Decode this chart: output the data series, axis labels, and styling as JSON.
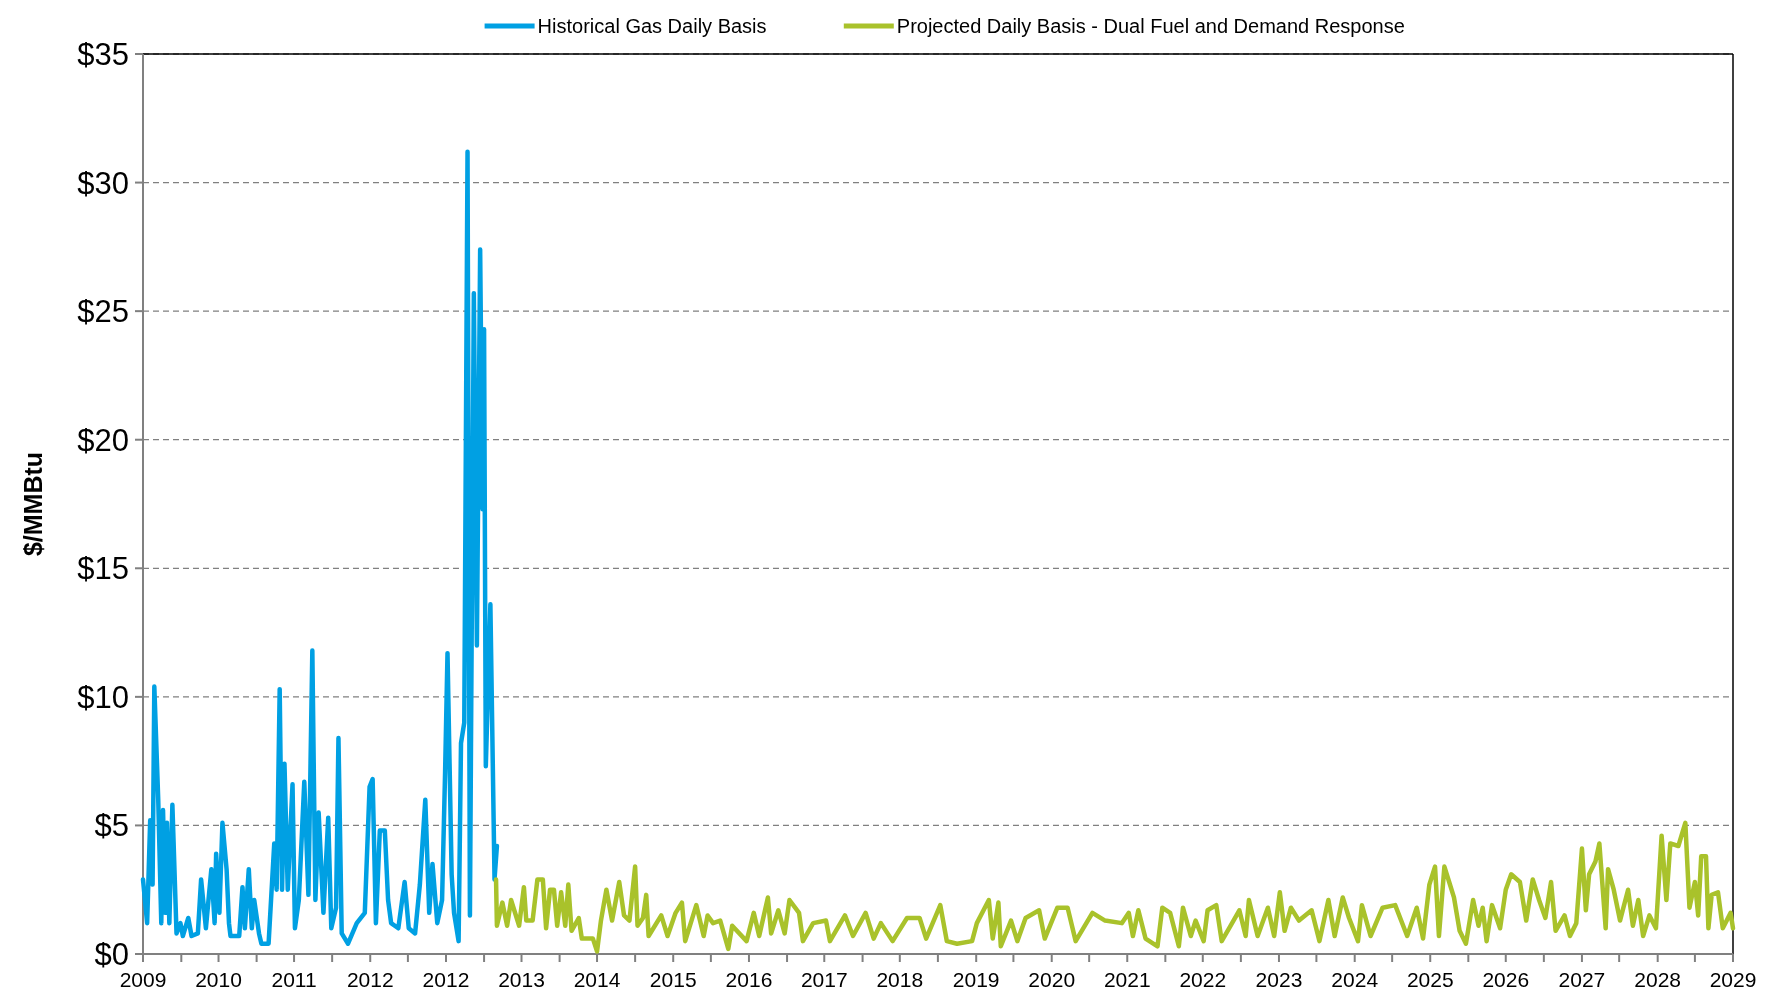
{
  "chart_data": {
    "type": "line",
    "ylabel": "$/MMBtu",
    "legend": "top",
    "grid": "y",
    "line_style": "solid",
    "marker": "none",
    "xlim": [
      "2009-02-28",
      "2029-02-28"
    ],
    "xticks": [
      {
        "value": "2009-02-28",
        "label": "2009"
      },
      {
        "value": "2009-08-23",
        "label": null
      },
      {
        "value": "2010-02-10",
        "label": "2010"
      },
      {
        "value": "2010-08-04",
        "label": null
      },
      {
        "value": "2011-01-23",
        "label": "2011"
      },
      {
        "value": "2011-07-17",
        "label": null
      },
      {
        "value": "2012-01-08",
        "label": "2012"
      },
      {
        "value": "2012-06-29",
        "label": null
      },
      {
        "value": "2012-12-21",
        "label": "2012"
      },
      {
        "value": "2013-06-14",
        "label": null
      },
      {
        "value": "2013-12-03",
        "label": "2013"
      },
      {
        "value": "2014-05-27",
        "label": null
      },
      {
        "value": "2014-11-15",
        "label": "2014"
      },
      {
        "value": "2015-05-09",
        "label": null
      },
      {
        "value": "2015-10-31",
        "label": "2015"
      },
      {
        "value": "2016-04-21",
        "label": null
      },
      {
        "value": "2016-10-13",
        "label": "2016"
      },
      {
        "value": "2017-04-06",
        "label": null
      },
      {
        "value": "2017-09-24",
        "label": "2017"
      },
      {
        "value": "2018-03-19",
        "label": null
      },
      {
        "value": "2018-09-06",
        "label": "2018"
      },
      {
        "value": "2019-02-28",
        "label": null
      },
      {
        "value": "2019-08-23",
        "label": "2019"
      },
      {
        "value": "2020-02-10",
        "label": null
      },
      {
        "value": "2020-08-04",
        "label": "2020"
      },
      {
        "value": "2021-01-23",
        "label": null
      },
      {
        "value": "2021-07-17",
        "label": "2021"
      },
      {
        "value": "2022-01-08",
        "label": null
      },
      {
        "value": "2022-06-29",
        "label": "2022"
      },
      {
        "value": "2022-12-21",
        "label": null
      },
      {
        "value": "2023-06-14",
        "label": "2023"
      },
      {
        "value": "2023-12-03",
        "label": null
      },
      {
        "value": "2024-05-27",
        "label": "2024"
      },
      {
        "value": "2024-11-15",
        "label": null
      },
      {
        "value": "2025-05-09",
        "label": "2025"
      },
      {
        "value": "2025-10-31",
        "label": null
      },
      {
        "value": "2026-04-21",
        "label": "2026"
      },
      {
        "value": "2026-10-13",
        "label": null
      },
      {
        "value": "2027-04-06",
        "label": "2027"
      },
      {
        "value": "2027-09-24",
        "label": null
      },
      {
        "value": "2028-03-19",
        "label": "2028"
      },
      {
        "value": "2028-09-06",
        "label": null
      },
      {
        "value": "2029-02-28",
        "label": "2029"
      }
    ],
    "ylim": [
      0,
      35
    ],
    "yticks": [
      {
        "value": 0,
        "label": "$0"
      },
      {
        "value": 5,
        "label": "$5"
      },
      {
        "value": 10,
        "label": "$10"
      },
      {
        "value": 15,
        "label": "$15"
      },
      {
        "value": 20,
        "label": "$20"
      },
      {
        "value": 25,
        "label": "$25"
      },
      {
        "value": 30,
        "label": "$30"
      },
      {
        "value": 35,
        "label": "$35"
      }
    ],
    "series": [
      {
        "name": "Historical Gas Daily Basis",
        "color": "#00a0e3",
        "x": [
          "2009-02-28",
          "2009-03-19",
          "2009-04-02",
          "2009-04-13",
          "2009-04-21",
          "2009-05-09",
          "2009-05-23",
          "2009-05-31",
          "2009-06-11",
          "2009-06-18",
          "2009-06-29",
          "2009-07-13",
          "2009-08-01",
          "2009-08-19",
          "2009-08-30",
          "2009-09-24",
          "2009-10-09",
          "2009-11-07",
          "2009-11-22",
          "2009-12-14",
          "2010-01-08",
          "2010-01-23",
          "2010-01-30",
          "2010-02-14",
          "2010-02-28",
          "2010-03-19",
          "2010-03-30",
          "2010-04-06",
          "2010-05-16",
          "2010-05-31",
          "2010-06-11",
          "2010-06-29",
          "2010-07-13",
          "2010-07-24",
          "2010-08-15",
          "2010-08-26",
          "2010-09-28",
          "2010-10-24",
          "2010-11-04",
          "2010-11-18",
          "2010-11-29",
          "2010-12-10",
          "2010-12-25",
          "2011-01-16",
          "2011-01-27",
          "2011-02-14",
          "2011-03-11",
          "2011-03-30",
          "2011-04-17",
          "2011-05-01",
          "2011-05-16",
          "2011-06-07",
          "2011-06-29",
          "2011-07-13",
          "2011-08-04",
          "2011-08-15",
          "2011-08-30",
          "2011-09-28",
          "2011-11-07",
          "2011-12-14",
          "2012-01-05",
          "2012-01-19",
          "2012-02-03",
          "2012-02-21",
          "2012-03-15",
          "2012-03-30",
          "2012-04-13",
          "2012-05-16",
          "2012-06-14",
          "2012-07-03",
          "2012-08-01",
          "2012-08-23",
          "2012-09-17",
          "2012-10-05",
          "2012-10-20",
          "2012-11-11",
          "2012-12-03",
          "2012-12-17",
          "2012-12-28",
          "2013-01-16",
          "2013-01-27",
          "2013-02-17",
          "2013-02-28",
          "2013-03-15",
          "2013-03-30",
          "2013-04-10",
          "2013-04-28",
          "2013-05-12",
          "2013-05-27",
          "2013-06-07",
          "2013-06-14",
          "2013-06-22",
          "2013-07-13",
          "2013-08-01",
          "2013-08-12"
        ],
        "values": [
          2.9,
          1.2,
          5.2,
          2.7,
          10.4,
          6,
          1.2,
          5.6,
          1.6,
          5.1,
          1.2,
          5.8,
          0.8,
          1.2,
          0.7,
          1.4,
          0.7,
          0.8,
          2.9,
          1,
          3.3,
          1.2,
          3.9,
          1.6,
          5.1,
          3.3,
          1.2,
          0.7,
          0.7,
          2.6,
          1,
          3.3,
          1,
          2.1,
          0.8,
          0.4,
          0.4,
          4.3,
          2.5,
          10.3,
          2.5,
          7.4,
          2.5,
          6.6,
          1,
          2.1,
          6.7,
          2.3,
          11.8,
          2.1,
          5.5,
          1.6,
          5.3,
          1,
          1.8,
          8.4,
          0.8,
          0.4,
          1.2,
          1.6,
          6.5,
          6.8,
          1.2,
          4.8,
          4.8,
          2.1,
          1.2,
          1,
          2.8,
          1,
          0.8,
          2.7,
          6,
          1.6,
          3.5,
          1.2,
          2.1,
          7.1,
          11.7,
          3.1,
          1.6,
          0.5,
          8.2,
          9,
          31.2,
          1.5,
          25.7,
          12,
          27.4,
          17.3,
          24.3,
          7.3,
          13.6,
          2.9,
          4.2
        ]
      },
      {
        "name": "Projected Daily Basis - Dual Fuel and Demand Response",
        "color": "#a9c22b",
        "x": [
          "2013-08-08",
          "2013-08-12",
          "2013-09-06",
          "2013-09-28",
          "2013-10-16",
          "2013-11-22",
          "2013-12-14",
          "2013-12-25",
          "2014-01-23",
          "2014-02-14",
          "2014-03-11",
          "2014-03-26",
          "2014-04-13",
          "2014-05-01",
          "2014-05-16",
          "2014-06-03",
          "2014-06-22",
          "2014-07-06",
          "2014-07-21",
          "2014-08-23",
          "2014-09-06",
          "2014-10-27",
          "2014-11-15",
          "2014-12-03",
          "2014-12-28",
          "2015-01-23",
          "2015-02-25",
          "2015-03-19",
          "2015-04-13",
          "2015-05-09",
          "2015-05-20",
          "2015-06-14",
          "2015-06-29",
          "2015-07-10",
          "2015-09-06",
          "2015-10-05",
          "2015-11-11",
          "2015-12-10",
          "2015-12-25",
          "2016-02-14",
          "2016-03-19",
          "2016-04-06",
          "2016-05-01",
          "2016-06-03",
          "2016-07-10",
          "2016-07-28",
          "2016-10-02",
          "2016-11-04",
          "2016-11-29",
          "2017-01-08",
          "2017-01-23",
          "2017-02-25",
          "2017-03-26",
          "2017-04-17",
          "2017-05-31",
          "2017-06-18",
          "2017-08-04",
          "2017-10-02",
          "2017-10-20",
          "2017-12-28",
          "2018-02-03",
          "2018-04-02",
          "2018-05-09",
          "2018-06-11",
          "2018-08-04",
          "2018-10-09",
          "2018-12-06",
          "2019-01-05",
          "2019-03-11",
          "2019-04-10",
          "2019-05-27",
          "2019-08-04",
          "2019-08-26",
          "2019-10-20",
          "2019-11-07",
          "2019-12-03",
          "2019-12-14",
          "2020-01-30",
          "2020-02-28",
          "2020-04-06",
          "2020-06-07",
          "2020-07-03",
          "2020-08-30",
          "2020-10-16",
          "2020-11-22",
          "2021-02-07",
          "2021-04-06",
          "2021-06-22",
          "2021-07-24",
          "2021-08-12",
          "2021-09-06",
          "2021-10-09",
          "2021-12-03",
          "2021-12-25",
          "2022-01-30",
          "2022-03-11",
          "2022-03-30",
          "2022-05-05",
          "2022-05-27",
          "2022-07-03",
          "2022-07-21",
          "2022-08-30",
          "2022-09-24",
          "2022-11-04",
          "2022-12-14",
          "2023-01-12",
          "2023-01-27",
          "2023-03-08",
          "2023-04-24",
          "2023-05-23",
          "2023-06-18",
          "2023-07-10",
          "2023-08-08",
          "2023-09-14",
          "2023-11-11",
          "2023-12-17",
          "2024-01-27",
          "2024-02-25",
          "2024-04-02",
          "2024-05-01",
          "2024-06-11",
          "2024-06-29",
          "2024-08-08",
          "2024-10-02",
          "2024-11-29",
          "2025-01-23",
          "2025-03-08",
          "2025-04-06",
          "2025-05-05",
          "2025-05-31",
          "2025-06-18",
          "2025-07-13",
          "2025-08-04",
          "2025-08-26",
          "2025-09-21",
          "2025-10-20",
          "2025-11-22",
          "2025-12-17",
          "2026-01-05",
          "2026-01-23",
          "2026-02-17",
          "2026-03-26",
          "2026-04-21",
          "2026-05-16",
          "2026-06-25",
          "2026-07-24",
          "2026-08-23",
          "2026-09-21",
          "2026-10-20",
          "2026-11-15",
          "2026-12-06",
          "2027-01-16",
          "2027-02-10",
          "2027-03-11",
          "2027-04-06",
          "2027-04-24",
          "2027-05-09",
          "2027-06-07",
          "2027-06-25",
          "2027-07-24",
          "2027-08-04",
          "2027-08-30",
          "2027-09-28",
          "2027-11-04",
          "2027-11-26",
          "2027-12-21",
          "2028-01-12",
          "2028-02-10",
          "2028-03-11",
          "2028-04-06",
          "2028-04-28",
          "2028-05-16",
          "2028-06-22",
          "2028-07-24",
          "2028-08-12",
          "2028-09-06",
          "2028-09-21",
          "2028-10-05",
          "2028-10-27",
          "2028-11-07",
          "2028-11-22",
          "2028-12-21",
          "2029-01-12",
          "2029-02-17",
          "2029-02-28"
        ],
        "values": [
          2.9,
          1.1,
          2.0,
          1.1,
          2.1,
          1.1,
          2.6,
          1.3,
          1.3,
          2.9,
          2.9,
          1.0,
          2.5,
          2.5,
          1.1,
          2.4,
          1.1,
          2.7,
          0.9,
          1.4,
          0.6,
          0.6,
          0.1,
          1.3,
          2.5,
          1.3,
          2.8,
          1.5,
          1.3,
          3.4,
          1.1,
          1.4,
          2.3,
          0.7,
          1.5,
          0.7,
          1.6,
          2.0,
          0.5,
          1.9,
          0.7,
          1.5,
          1.2,
          1.3,
          0.2,
          1.1,
          0.5,
          1.6,
          0.7,
          2.2,
          0.8,
          1.7,
          0.8,
          2.1,
          1.6,
          0.5,
          1.2,
          1.3,
          0.5,
          1.5,
          0.7,
          1.6,
          0.6,
          1.2,
          0.5,
          1.4,
          1.4,
          0.6,
          1.9,
          0.5,
          0.4,
          0.5,
          1.2,
          2.1,
          0.6,
          2.0,
          0.3,
          1.3,
          0.5,
          1.4,
          1.7,
          0.6,
          1.8,
          1.8,
          0.5,
          1.6,
          1.3,
          1.2,
          1.6,
          0.7,
          1.7,
          0.6,
          0.3,
          1.8,
          1.6,
          0.3,
          1.8,
          0.7,
          1.3,
          0.5,
          1.7,
          1.9,
          0.5,
          1.1,
          1.7,
          0.7,
          2.1,
          0.7,
          1.8,
          0.7,
          2.4,
          0.9,
          1.8,
          1.3,
          1.7,
          0.5,
          2.1,
          0.7,
          2.2,
          1.4,
          0.5,
          1.9,
          0.7,
          1.8,
          1.9,
          0.7,
          1.8,
          0.6,
          2.7,
          3.4,
          0.7,
          3.4,
          2.8,
          2.2,
          0.9,
          0.4,
          2.1,
          1.1,
          1.8,
          0.5,
          1.9,
          1.0,
          2.5,
          3.1,
          2.8,
          1.3,
          2.9,
          2.1,
          1.4,
          2.8,
          0.9,
          1.5,
          0.7,
          1.2,
          4.1,
          1.7,
          3.1,
          3.6,
          4.3,
          1.0,
          3.3,
          2.5,
          1.3,
          2.5,
          1.1,
          2.1,
          0.7,
          1.5,
          1.0,
          4.6,
          2.1,
          4.3,
          4.2,
          5.1,
          1.8,
          2.8,
          1.5,
          3.8,
          3.8,
          1.0,
          2.3,
          2.4,
          1.0,
          1.6,
          1.0
        ]
      }
    ]
  }
}
